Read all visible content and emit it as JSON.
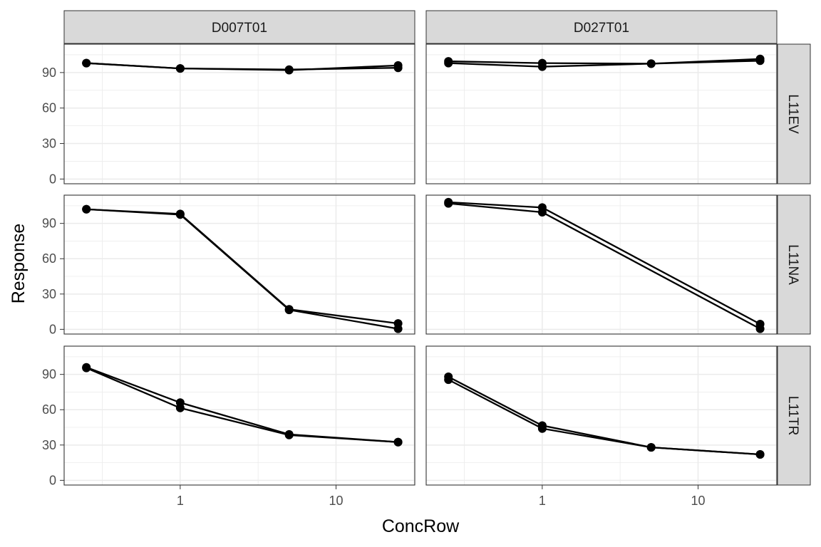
{
  "chart_data": {
    "type": "line",
    "xlabel": "ConcRow",
    "ylabel": "Response",
    "x_scale": "log10",
    "xlim": [
      0.18,
      32
    ],
    "x_ticks": [
      1,
      10
    ],
    "x_tick_labels": [
      "1",
      "10"
    ],
    "ylim": [
      -4,
      114
    ],
    "y_ticks": [
      0,
      30,
      60,
      90
    ],
    "y_tick_labels": [
      "0",
      "30",
      "60",
      "90"
    ],
    "grid": true,
    "col_facets": [
      "D007T01",
      "D027T01"
    ],
    "row_facets": [
      "L11EV",
      "L11NA",
      "L11TR"
    ],
    "x": [
      0.25,
      1,
      5,
      25
    ],
    "panels": [
      {
        "col": "D007T01",
        "row": "L11EV",
        "series": [
          {
            "values": [
              98,
              93.5,
              92,
              96
            ]
          },
          {
            "values": [
              98,
              93.5,
              92.5,
              94
            ]
          }
        ]
      },
      {
        "col": "D027T01",
        "row": "L11EV",
        "series": [
          {
            "values": [
              99.5,
              98,
              97.5,
              100
            ]
          },
          {
            "values": [
              98,
              95,
              97.5,
              101.5
            ]
          }
        ]
      },
      {
        "col": "D007T01",
        "row": "L11NA",
        "series": [
          {
            "values": [
              102,
              98,
              17,
              5
            ]
          },
          {
            "values": [
              102,
              97.5,
              16.5,
              0.5
            ]
          }
        ]
      },
      {
        "col": "D027T01",
        "row": "L11NA",
        "series": [
          {
            "values": [
              108,
              103.5,
              null,
              4.5
            ]
          },
          {
            "values": [
              107,
              99.5,
              null,
              0.5
            ]
          }
        ]
      },
      {
        "col": "D007T01",
        "row": "L11TR",
        "series": [
          {
            "values": [
              96,
              66,
              39,
              32.5
            ]
          },
          {
            "values": [
              95.5,
              61.5,
              38.5,
              32.5
            ]
          }
        ]
      },
      {
        "col": "D027T01",
        "row": "L11TR",
        "series": [
          {
            "values": [
              88,
              46.5,
              28,
              22
            ]
          },
          {
            "values": [
              85.5,
              44,
              28,
              22
            ]
          }
        ]
      }
    ]
  }
}
